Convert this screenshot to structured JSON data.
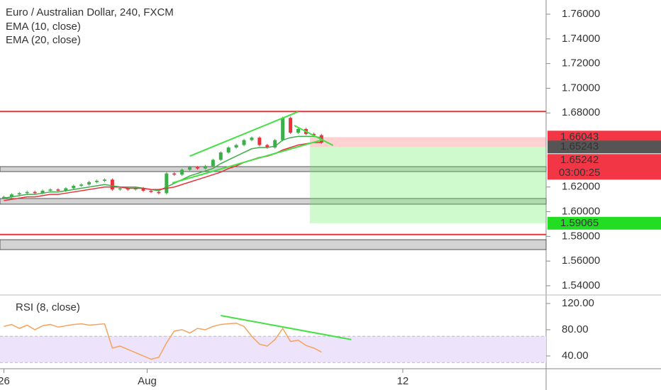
{
  "chart_data": [
    {
      "type": "candlestick",
      "title": "Euro / Australian Dollar, 240, FXCM",
      "x": [
        0,
        2,
        4,
        6,
        8,
        10,
        12,
        14,
        16,
        18,
        20,
        22,
        24,
        26,
        28,
        30,
        32,
        34,
        36,
        38,
        40,
        42,
        44,
        46,
        48,
        50,
        52,
        54,
        56,
        58,
        60,
        62,
        64,
        66,
        68,
        70,
        72,
        74,
        76,
        78,
        80,
        82
      ],
      "open": [
        1.611,
        1.612,
        1.614,
        1.615,
        1.616,
        1.615,
        1.617,
        1.618,
        1.617,
        1.619,
        1.621,
        1.622,
        1.624,
        1.625,
        1.626,
        1.618,
        1.619,
        1.618,
        1.619,
        1.617,
        1.616,
        1.615,
        1.631,
        1.63,
        1.634,
        1.636,
        1.635,
        1.637,
        1.642,
        1.648,
        1.652,
        1.654,
        1.658,
        1.66,
        1.654,
        1.652,
        1.658,
        1.676,
        1.664,
        1.667,
        1.663,
        1.662
      ],
      "high": [
        1.613,
        1.615,
        1.616,
        1.617,
        1.617,
        1.618,
        1.619,
        1.619,
        1.62,
        1.622,
        1.623,
        1.625,
        1.626,
        1.627,
        1.627,
        1.62,
        1.62,
        1.62,
        1.62,
        1.618,
        1.617,
        1.632,
        1.632,
        1.635,
        1.637,
        1.637,
        1.638,
        1.643,
        1.649,
        1.653,
        1.655,
        1.659,
        1.661,
        1.661,
        1.655,
        1.659,
        1.677,
        1.677,
        1.668,
        1.668,
        1.664,
        1.663
      ],
      "low": [
        1.61,
        1.611,
        1.613,
        1.614,
        1.614,
        1.614,
        1.616,
        1.616,
        1.616,
        1.618,
        1.62,
        1.621,
        1.623,
        1.624,
        1.617,
        1.617,
        1.617,
        1.617,
        1.616,
        1.615,
        1.614,
        1.614,
        1.629,
        1.629,
        1.633,
        1.634,
        1.634,
        1.636,
        1.641,
        1.647,
        1.651,
        1.653,
        1.657,
        1.653,
        1.651,
        1.651,
        1.657,
        1.663,
        1.663,
        1.662,
        1.661,
        1.655
      ],
      "close": [
        1.612,
        1.614,
        1.615,
        1.616,
        1.615,
        1.617,
        1.618,
        1.617,
        1.619,
        1.621,
        1.622,
        1.624,
        1.625,
        1.626,
        1.618,
        1.619,
        1.618,
        1.619,
        1.617,
        1.616,
        1.615,
        1.631,
        1.63,
        1.634,
        1.636,
        1.635,
        1.637,
        1.642,
        1.648,
        1.652,
        1.654,
        1.658,
        1.66,
        1.654,
        1.652,
        1.658,
        1.676,
        1.664,
        1.667,
        1.663,
        1.662,
        1.656
      ],
      "up_color": "#3dae4a",
      "down_color": "#e8333b",
      "series": [
        {
          "name": "EMA (10, close)",
          "color": "#3dae4a",
          "values": [
            1.611,
            1.612,
            1.613,
            1.614,
            1.614,
            1.615,
            1.616,
            1.616,
            1.617,
            1.618,
            1.619,
            1.62,
            1.621,
            1.622,
            1.621,
            1.62,
            1.62,
            1.62,
            1.619,
            1.618,
            1.617,
            1.62,
            1.623,
            1.626,
            1.629,
            1.631,
            1.633,
            1.635,
            1.639,
            1.642,
            1.645,
            1.648,
            1.651,
            1.652,
            1.652,
            1.653,
            1.658,
            1.66,
            1.661,
            1.661,
            1.661,
            1.66
          ]
        },
        {
          "name": "EMA (20, close)",
          "color": "#e8333b",
          "values": [
            1.609,
            1.61,
            1.611,
            1.612,
            1.612,
            1.613,
            1.614,
            1.614,
            1.615,
            1.616,
            1.617,
            1.618,
            1.619,
            1.62,
            1.62,
            1.62,
            1.619,
            1.619,
            1.619,
            1.618,
            1.618,
            1.619,
            1.62,
            1.622,
            1.624,
            1.626,
            1.628,
            1.63,
            1.632,
            1.635,
            1.637,
            1.64,
            1.642,
            1.644,
            1.645,
            1.647,
            1.65,
            1.652,
            1.654,
            1.655,
            1.656,
            1.656
          ]
        }
      ],
      "xlim": [
        -1,
        140
      ],
      "ylim": [
        1.5331,
        1.7715
      ],
      "yticks": [
        {
          "value": 1.76,
          "label": "1.76000"
        },
        {
          "value": 1.74,
          "label": "1.74000"
        },
        {
          "value": 1.72,
          "label": "1.72000"
        },
        {
          "value": 1.7,
          "label": "1.70000"
        },
        {
          "value": 1.68,
          "label": "1.68000"
        },
        {
          "value": 1.62,
          "label": "1.62000"
        },
        {
          "value": 1.6,
          "label": "1.60000"
        },
        {
          "value": 1.58,
          "label": "1.58000"
        },
        {
          "value": 1.56,
          "label": "1.56000"
        },
        {
          "value": 1.54,
          "label": "1.54000"
        }
      ],
      "hlines": [
        {
          "value": 1.6812,
          "color": "#e8333b"
        },
        {
          "value": 1.5815,
          "color": "#e8333b"
        }
      ],
      "zones": [
        {
          "range": [
            1.6325,
            1.6365
          ],
          "color": "#c8c8c8"
        },
        {
          "range": [
            1.6061,
            1.6107
          ],
          "color": "#c8c8c8"
        },
        {
          "range": [
            1.5693,
            1.5773
          ],
          "color": "#c8c8c8"
        }
      ],
      "trendlines": [
        {
          "x": [
            48,
            76
          ],
          "y": [
            1.645,
            1.681
          ],
          "color": "#44e044"
        },
        {
          "x": [
            43.5,
            82.3
          ],
          "y": [
            1.6233,
            1.6583
          ],
          "color": "#44e044"
        },
        {
          "x": [
            75,
            85
          ],
          "y": [
            1.6698,
            1.6537
          ],
          "color": "#44e044"
        }
      ],
      "position": {
        "x_start": 79,
        "stop": 1.66043,
        "entry": 1.65243,
        "target": 1.59065
      },
      "current_price": 1.65242,
      "countdown": "03:00:25"
    },
    {
      "type": "line",
      "title": "RSI (8, close)",
      "x": [
        0,
        2,
        4,
        6,
        8,
        10,
        12,
        14,
        16,
        18,
        20,
        22,
        24,
        26,
        28,
        30,
        32,
        34,
        36,
        38,
        40,
        42,
        44,
        46,
        48,
        50,
        52,
        54,
        56,
        58,
        60,
        62,
        64,
        66,
        68,
        70,
        72,
        74,
        76,
        78,
        80,
        82
      ],
      "series": [
        {
          "color": "#f5a25d",
          "values": [
            85,
            88,
            82,
            87,
            80,
            86,
            88,
            84,
            86,
            88,
            89,
            87,
            88,
            89,
            52,
            55,
            50,
            45,
            40,
            35,
            38,
            60,
            78,
            80,
            75,
            82,
            80,
            85,
            88,
            89,
            90,
            85,
            70,
            58,
            55,
            65,
            82,
            62,
            64,
            56,
            52,
            46
          ]
        }
      ],
      "band": [
        30,
        70
      ],
      "trendlines": [
        {
          "x": [
            56,
            89.7
          ],
          "y": [
            101.6,
            65
          ],
          "color": "#44e044"
        }
      ],
      "xlim": [
        -1,
        140
      ],
      "xticks": [
        {
          "value": 0,
          "label": "26"
        },
        {
          "value": 37,
          "label": "Aug"
        },
        {
          "value": 103,
          "label": "12"
        }
      ],
      "ylim": [
        20.5,
        130.8
      ],
      "yticks": [
        {
          "value": 120,
          "label": "120.00"
        },
        {
          "value": 80,
          "label": "80.00"
        },
        {
          "value": 40,
          "label": "40.00"
        }
      ]
    }
  ]
}
